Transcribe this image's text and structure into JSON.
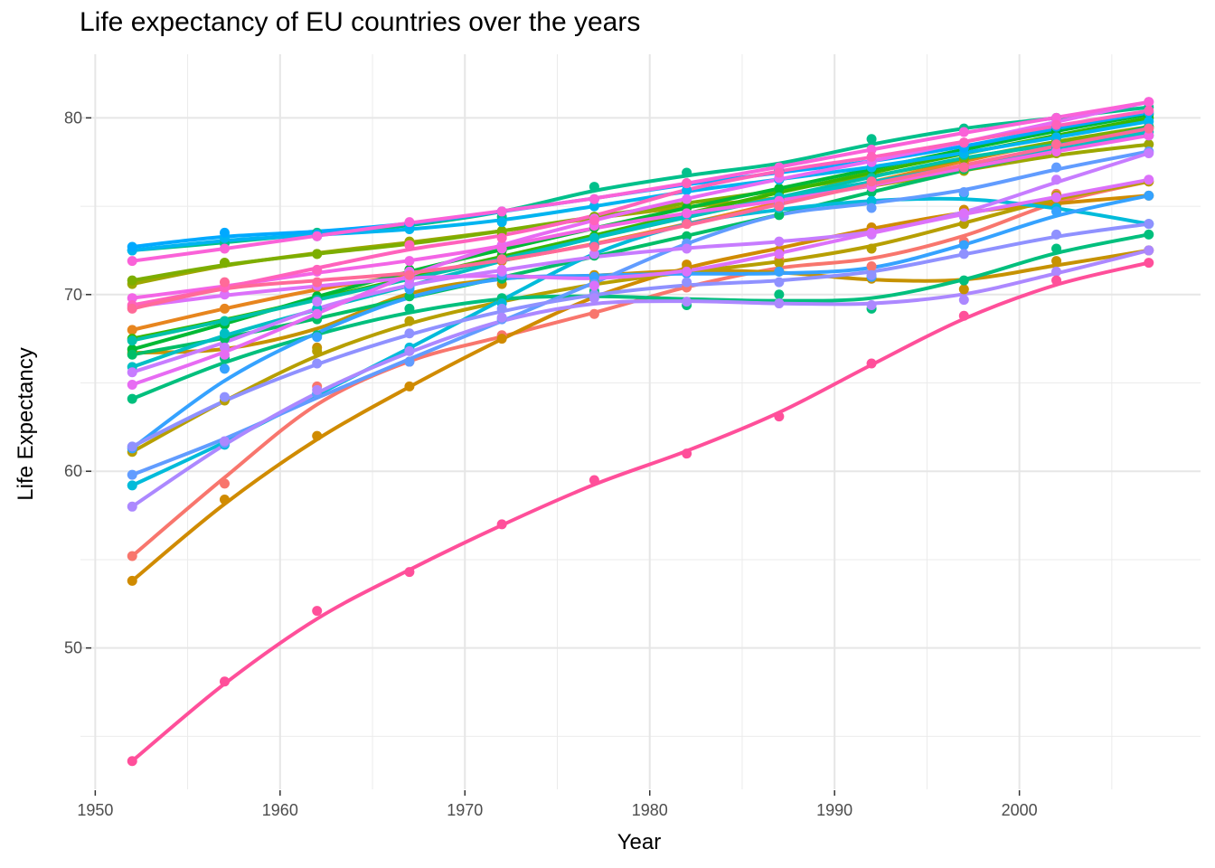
{
  "chart_data": {
    "type": "line",
    "title": "Life expectancy of EU countries over the years",
    "xlabel": "Year",
    "ylabel": "Life Expectancy",
    "xlim": [
      1949.2,
      2009.8
    ],
    "ylim": [
      42.0,
      83.6
    ],
    "x_ticks": [
      1950,
      1960,
      1970,
      1980,
      1990,
      2000
    ],
    "y_ticks": [
      50,
      60,
      70,
      80
    ],
    "grid": true,
    "legend": "none",
    "smoothed": true,
    "x": [
      1952,
      1957,
      1962,
      1967,
      1972,
      1977,
      1982,
      1987,
      1992,
      1997,
      2002,
      2007
    ],
    "series": [
      {
        "color": "#F8766D",
        "values": [
          55.2,
          59.3,
          64.8,
          66.2,
          67.7,
          68.9,
          70.4,
          72.0,
          71.6,
          73.0,
          75.7,
          76.4
        ]
      },
      {
        "color": "#E7851E",
        "values": [
          68.0,
          69.2,
          70.4,
          71.1,
          71.9,
          72.8,
          74.0,
          75.2,
          76.4,
          77.5,
          78.8,
          79.4
        ]
      },
      {
        "color": "#D08B00",
        "values": [
          53.8,
          58.4,
          62.0,
          64.8,
          67.5,
          70.1,
          71.7,
          72.5,
          73.8,
          74.8,
          75.1,
          75.6
        ]
      },
      {
        "color": "#C69200",
        "values": [
          66.7,
          67.0,
          67.0,
          71.3,
          70.6,
          71.1,
          71.5,
          71.3,
          70.9,
          70.3,
          71.9,
          72.5
        ]
      },
      {
        "color": "#B79F00",
        "values": [
          61.1,
          64.0,
          66.8,
          68.5,
          69.6,
          70.7,
          71.3,
          71.8,
          72.6,
          74.0,
          75.6,
          76.4
        ]
      },
      {
        "color": "#9DA700",
        "values": [
          70.6,
          71.8,
          72.3,
          73.0,
          73.5,
          74.4,
          75.0,
          75.4,
          76.1,
          77.0,
          78.0,
          78.5
        ]
      },
      {
        "color": "#7CAE00",
        "values": [
          70.8,
          71.8,
          72.3,
          72.8,
          73.6,
          74.4,
          75.2,
          75.9,
          76.6,
          77.7,
          78.7,
          79.5
        ]
      },
      {
        "color": "#39B600",
        "values": [
          67.5,
          68.5,
          69.8,
          70.9,
          72.2,
          73.3,
          74.6,
          75.8,
          76.9,
          78.0,
          79.0,
          80.0
        ]
      },
      {
        "color": "#00B934",
        "values": [
          66.9,
          68.3,
          69.9,
          71.4,
          72.5,
          73.8,
          74.9,
          76.0,
          77.1,
          78.2,
          79.3,
          80.2
        ]
      },
      {
        "color": "#00BE67",
        "values": [
          66.6,
          67.5,
          68.6,
          69.9,
          70.9,
          72.2,
          73.3,
          74.5,
          75.8,
          77.1,
          78.1,
          79.5
        ]
      },
      {
        "color": "#00BF7D",
        "values": [
          64.1,
          66.4,
          67.7,
          69.2,
          69.8,
          70.2,
          69.4,
          70.0,
          69.2,
          70.8,
          72.6,
          73.4
        ]
      },
      {
        "color": "#00C08B",
        "values": [
          72.5,
          72.9,
          73.5,
          73.9,
          74.4,
          76.1,
          76.9,
          77.0,
          78.8,
          79.4,
          80.0,
          80.6
        ]
      },
      {
        "color": "#00C1A9",
        "values": [
          67.4,
          68.5,
          69.7,
          70.9,
          72.0,
          73.2,
          74.4,
          75.5,
          76.6,
          77.9,
          78.5,
          79.0
        ]
      },
      {
        "color": "#00BFC4",
        "values": [
          65.9,
          67.8,
          69.2,
          70.4,
          72.0,
          73.2,
          74.5,
          75.5,
          76.4,
          77.2,
          78.3,
          79.2
        ]
      },
      {
        "color": "#00BBDA",
        "values": [
          59.2,
          61.5,
          64.4,
          67.0,
          69.5,
          72.8,
          74.1,
          74.9,
          75.3,
          75.7,
          74.9,
          74.0
        ]
      },
      {
        "color": "#00B4F0",
        "values": [
          72.5,
          73.2,
          73.3,
          73.7,
          74.1,
          75.0,
          75.9,
          76.5,
          77.2,
          78.0,
          78.9,
          79.8
        ]
      },
      {
        "color": "#00A9FF",
        "values": [
          72.7,
          73.5,
          73.4,
          74.0,
          74.7,
          75.4,
          76.3,
          76.9,
          77.5,
          78.3,
          79.5,
          80.3
        ]
      },
      {
        "color": "#35A2FF",
        "values": [
          61.3,
          65.8,
          67.6,
          70.3,
          71.1,
          71.0,
          71.2,
          71.3,
          71.0,
          72.8,
          74.7,
          75.6
        ]
      },
      {
        "color": "#619CFF",
        "values": [
          59.8,
          61.6,
          64.4,
          66.2,
          68.6,
          70.6,
          72.9,
          75.1,
          74.9,
          75.8,
          77.2,
          78.1
        ]
      },
      {
        "color": "#8F91FF",
        "values": [
          61.4,
          64.2,
          66.1,
          67.8,
          69.2,
          70.0,
          70.7,
          70.7,
          71.1,
          72.3,
          73.4,
          74.0
        ]
      },
      {
        "color": "#AC88FF",
        "values": [
          58.0,
          61.7,
          64.6,
          66.8,
          68.7,
          69.8,
          69.6,
          69.5,
          69.4,
          69.7,
          71.3,
          72.5
        ]
      },
      {
        "color": "#C77CFF",
        "values": [
          65.6,
          67.0,
          69.6,
          70.6,
          71.3,
          72.3,
          72.6,
          73.0,
          73.4,
          74.4,
          76.5,
          78.0
        ]
      },
      {
        "color": "#DC71FA",
        "values": [
          69.3,
          70.0,
          70.5,
          70.9,
          71.4,
          70.5,
          71.3,
          72.3,
          73.5,
          74.6,
          75.5,
          76.5
        ]
      },
      {
        "color": "#E76BF3",
        "values": [
          64.9,
          66.6,
          68.9,
          71.3,
          72.8,
          74.3,
          75.4,
          76.6,
          77.5,
          78.6,
          79.8,
          80.9
        ]
      },
      {
        "color": "#F365E6",
        "values": [
          69.8,
          70.4,
          71.3,
          71.9,
          72.6,
          73.9,
          74.6,
          75.3,
          76.1,
          77.2,
          78.1,
          79.0
        ]
      },
      {
        "color": "#FA62D8",
        "values": [
          71.9,
          72.6,
          73.3,
          74.1,
          74.7,
          75.4,
          76.3,
          77.2,
          78.2,
          79.2,
          80.0,
          80.9
        ]
      },
      {
        "color": "#FF62BC",
        "values": [
          69.4,
          70.4,
          71.4,
          72.8,
          73.2,
          74.2,
          76.3,
          76.9,
          77.8,
          78.6,
          79.6,
          80.4
        ]
      },
      {
        "color": "#FF6A98",
        "values": [
          69.2,
          70.7,
          70.7,
          71.1,
          72.0,
          72.7,
          74.0,
          75.0,
          76.4,
          77.2,
          78.5,
          79.4
        ]
      },
      {
        "color": "#FF4F9A",
        "values": [
          43.6,
          48.1,
          52.1,
          54.3,
          57.0,
          59.5,
          61.0,
          63.1,
          66.1,
          68.8,
          70.8,
          71.8
        ]
      }
    ]
  }
}
